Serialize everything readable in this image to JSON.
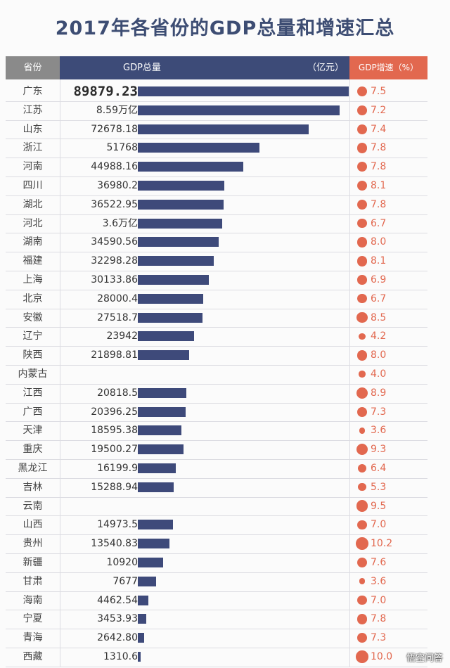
{
  "title": "2017年各省份的GDP总量和增速汇总",
  "header": {
    "province": "省份",
    "gdp": "GDP总量",
    "unit": "（亿元）",
    "growth": "GDP增速（%）"
  },
  "watermark": "悟空问答",
  "colors": {
    "bar": "#3e4a7a",
    "dot": "#e2684f",
    "header_gdp": "#3d4b78",
    "header_province": "#8a8a8a",
    "header_growth": "#e2684f"
  },
  "chart_data": {
    "type": "table",
    "title": "2017年各省份的GDP总量和增速汇总",
    "rows": [
      {
        "province": "广东",
        "gdp_label": "89879.23",
        "gdp": 89879.23,
        "growth": "7.5"
      },
      {
        "province": "江苏",
        "gdp_label": "8.59万亿",
        "gdp": 85900,
        "growth": "7.2"
      },
      {
        "province": "山东",
        "gdp_label": "72678.18",
        "gdp": 72678.18,
        "growth": "7.4"
      },
      {
        "province": "浙江",
        "gdp_label": "51768",
        "gdp": 51768,
        "growth": "7.8"
      },
      {
        "province": "河南",
        "gdp_label": "44988.16",
        "gdp": 44988.16,
        "growth": "7.8"
      },
      {
        "province": "四川",
        "gdp_label": "36980.2",
        "gdp": 36980.2,
        "growth": "8.1"
      },
      {
        "province": "湖北",
        "gdp_label": "36522.95",
        "gdp": 36522.95,
        "growth": "7.8"
      },
      {
        "province": "河北",
        "gdp_label": "3.6万亿",
        "gdp": 36000,
        "growth": "6.7"
      },
      {
        "province": "湖南",
        "gdp_label": "34590.56",
        "gdp": 34590.56,
        "growth": "8.0"
      },
      {
        "province": "福建",
        "gdp_label": "32298.28",
        "gdp": 32298.28,
        "growth": "8.1"
      },
      {
        "province": "上海",
        "gdp_label": "30133.86",
        "gdp": 30133.86,
        "growth": "6.9"
      },
      {
        "province": "北京",
        "gdp_label": "28000.4",
        "gdp": 28000.4,
        "growth": "6.7"
      },
      {
        "province": "安徽",
        "gdp_label": "27518.7",
        "gdp": 27518.7,
        "growth": "8.5"
      },
      {
        "province": "辽宁",
        "gdp_label": "23942",
        "gdp": 23942,
        "growth": "4.2"
      },
      {
        "province": "陕西",
        "gdp_label": "21898.81",
        "gdp": 21898.81,
        "growth": "8.0"
      },
      {
        "province": "内蒙古",
        "gdp_label": "",
        "gdp": null,
        "growth": "4.0"
      },
      {
        "province": "江西",
        "gdp_label": "20818.5",
        "gdp": 20818.5,
        "growth": "8.9"
      },
      {
        "province": "广西",
        "gdp_label": "20396.25",
        "gdp": 20396.25,
        "growth": "7.3"
      },
      {
        "province": "天津",
        "gdp_label": "18595.38",
        "gdp": 18595.38,
        "growth": "3.6"
      },
      {
        "province": "重庆",
        "gdp_label": "19500.27",
        "gdp": 19500.27,
        "growth": "9.3"
      },
      {
        "province": "黑龙江",
        "gdp_label": "16199.9",
        "gdp": 16199.9,
        "growth": "6.4"
      },
      {
        "province": "吉林",
        "gdp_label": "15288.94",
        "gdp": 15288.94,
        "growth": "5.3"
      },
      {
        "province": "云南",
        "gdp_label": "",
        "gdp": null,
        "growth": "9.5"
      },
      {
        "province": "山西",
        "gdp_label": "14973.5",
        "gdp": 14973.5,
        "growth": "7.0"
      },
      {
        "province": "贵州",
        "gdp_label": "13540.83",
        "gdp": 13540.83,
        "growth": "10.2"
      },
      {
        "province": "新疆",
        "gdp_label": "10920",
        "gdp": 10920,
        "growth": "7.6"
      },
      {
        "province": "甘肃",
        "gdp_label": "7677",
        "gdp": 7677,
        "growth": "3.6"
      },
      {
        "province": "海南",
        "gdp_label": "4462.54",
        "gdp": 4462.54,
        "growth": "7.0"
      },
      {
        "province": "宁夏",
        "gdp_label": "3453.93",
        "gdp": 3453.93,
        "growth": "7.8"
      },
      {
        "province": "青海",
        "gdp_label": "2642.80",
        "gdp": 2642.8,
        "growth": "7.3"
      },
      {
        "province": "西藏",
        "gdp_label": "1310.6",
        "gdp": 1310.6,
        "growth": "10.0"
      }
    ]
  }
}
